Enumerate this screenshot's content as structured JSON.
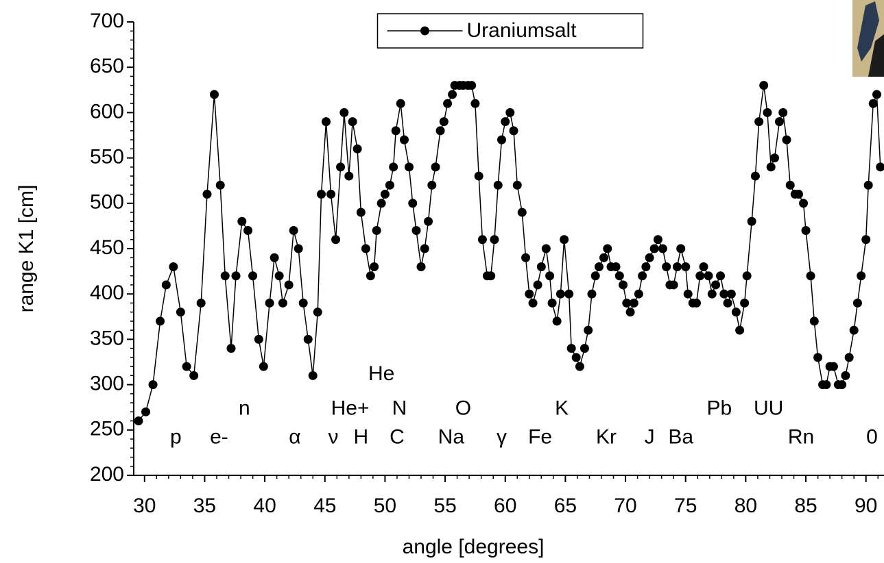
{
  "chart_data": {
    "type": "line",
    "xlabel": "angle [degrees]",
    "ylabel": "range K1 [cm]",
    "xlim": [
      29.1,
      91.5
    ],
    "ylim": [
      200,
      700
    ],
    "xticks": [
      30,
      35,
      40,
      45,
      50,
      55,
      60,
      65,
      70,
      75,
      80,
      85,
      90
    ],
    "yticks": [
      200,
      250,
      300,
      350,
      400,
      450,
      500,
      550,
      600,
      650,
      700
    ],
    "minor_ticks_between": 4,
    "legend": "upper center",
    "x": [
      29.5,
      30.1,
      30.7,
      31.3,
      31.8,
      32.4,
      33.0,
      33.5,
      34.1,
      34.7,
      35.2,
      35.8,
      36.3,
      36.7,
      37.2,
      37.6,
      38.1,
      38.6,
      39.0,
      39.5,
      39.9,
      40.4,
      40.8,
      41.2,
      41.5,
      42.0,
      42.4,
      42.8,
      43.2,
      43.6,
      44.0,
      44.4,
      44.7,
      45.1,
      45.5,
      45.9,
      46.3,
      46.6,
      47.0,
      47.3,
      47.7,
      48.0,
      48.4,
      48.8,
      49.1,
      49.3,
      49.7,
      50.0,
      50.4,
      50.7,
      50.9,
      51.3,
      51.6,
      52.0,
      52.3,
      52.6,
      53.0,
      53.3,
      53.6,
      53.9,
      54.2,
      54.6,
      54.9,
      55.2,
      55.6,
      55.8,
      56.2,
      56.5,
      56.9,
      57.2,
      57.5,
      57.8,
      58.1,
      58.5,
      58.8,
      59.1,
      59.4,
      59.7,
      60.0,
      60.4,
      60.7,
      61.0,
      61.4,
      61.7,
      62.0,
      62.3,
      62.7,
      63.0,
      63.4,
      63.7,
      63.9,
      64.3,
      64.6,
      64.9,
      65.3,
      65.5,
      65.9,
      66.2,
      66.6,
      66.9,
      67.2,
      67.5,
      67.8,
      68.2,
      68.5,
      68.8,
      69.2,
      69.5,
      69.8,
      70.1,
      70.4,
      70.7,
      71.1,
      71.4,
      71.7,
      72.0,
      72.4,
      72.7,
      73.1,
      73.4,
      73.7,
      74.0,
      74.3,
      74.6,
      75.0,
      75.2,
      75.6,
      75.9,
      76.2,
      76.5,
      76.9,
      77.2,
      77.5,
      77.9,
      78.2,
      78.5,
      78.8,
      79.2,
      79.5,
      79.9,
      80.1,
      80.5,
      80.8,
      81.1,
      81.5,
      81.8,
      82.1,
      82.4,
      82.8,
      83.1,
      83.4,
      83.7,
      84.1,
      84.4,
      84.8,
      85.0,
      85.4,
      85.7,
      86.0,
      86.4,
      86.7,
      87.0,
      87.3,
      87.7,
      88.0,
      88.3,
      88.6,
      89.0,
      89.3,
      89.6,
      90.0,
      90.2,
      90.6,
      90.9,
      91.2
    ],
    "series": [
      {
        "name": "Uraniumsalt",
        "color": "#000000",
        "values": [
          260,
          270,
          300,
          370,
          410,
          430,
          380,
          320,
          310,
          390,
          510,
          620,
          520,
          420,
          340,
          420,
          480,
          470,
          420,
          350,
          320,
          390,
          440,
          420,
          390,
          410,
          470,
          450,
          390,
          350,
          310,
          380,
          510,
          590,
          510,
          460,
          540,
          600,
          530,
          590,
          560,
          490,
          450,
          420,
          430,
          470,
          500,
          510,
          520,
          540,
          580,
          610,
          570,
          540,
          500,
          470,
          430,
          450,
          480,
          520,
          540,
          580,
          590,
          610,
          620,
          630,
          630,
          630,
          630,
          630,
          610,
          530,
          460,
          420,
          420,
          460,
          520,
          570,
          590,
          600,
          580,
          520,
          490,
          440,
          400,
          390,
          410,
          430,
          450,
          420,
          390,
          370,
          400,
          460,
          400,
          340,
          330,
          320,
          340,
          360,
          400,
          420,
          430,
          440,
          450,
          430,
          430,
          420,
          410,
          390,
          380,
          390,
          400,
          420,
          430,
          440,
          450,
          460,
          450,
          430,
          410,
          410,
          430,
          450,
          430,
          400,
          390,
          390,
          420,
          430,
          420,
          400,
          410,
          420,
          400,
          390,
          400,
          380,
          360,
          390,
          420,
          480,
          530,
          590,
          630,
          600,
          540,
          550,
          590,
          600,
          570,
          520,
          510,
          510,
          500,
          470,
          420,
          370,
          330,
          300,
          300,
          320,
          320,
          300,
          300,
          310,
          330,
          360,
          390,
          420,
          460,
          520,
          610,
          620,
          540
        ]
      }
    ],
    "annotations": [
      {
        "text": "p",
        "x": 32.6,
        "y": 241
      },
      {
        "text": "e-",
        "x": 36.2,
        "y": 241
      },
      {
        "text": "n",
        "x": 38.3,
        "y": 273
      },
      {
        "text": "α",
        "x": 42.5,
        "y": 241
      },
      {
        "text": "He+",
        "x": 47.1,
        "y": 273
      },
      {
        "text": "ν",
        "x": 45.7,
        "y": 241
      },
      {
        "text": "H",
        "x": 48.0,
        "y": 241
      },
      {
        "text": "He",
        "x": 49.7,
        "y": 311
      },
      {
        "text": "N",
        "x": 51.2,
        "y": 273
      },
      {
        "text": "C",
        "x": 51.0,
        "y": 241
      },
      {
        "text": "O",
        "x": 56.5,
        "y": 273
      },
      {
        "text": "Na",
        "x": 55.5,
        "y": 241
      },
      {
        "text": "γ",
        "x": 59.7,
        "y": 241
      },
      {
        "text": "Fe",
        "x": 62.9,
        "y": 241
      },
      {
        "text": "K",
        "x": 64.7,
        "y": 273
      },
      {
        "text": "Kr",
        "x": 68.4,
        "y": 241
      },
      {
        "text": "J",
        "x": 72.0,
        "y": 241
      },
      {
        "text": "Ba",
        "x": 74.6,
        "y": 241
      },
      {
        "text": "Pb",
        "x": 77.8,
        "y": 273
      },
      {
        "text": "UU",
        "x": 81.9,
        "y": 273
      },
      {
        "text": "Rn",
        "x": 84.6,
        "y": 241
      },
      {
        "text": "0",
        "x": 90.5,
        "y": 241
      }
    ]
  }
}
